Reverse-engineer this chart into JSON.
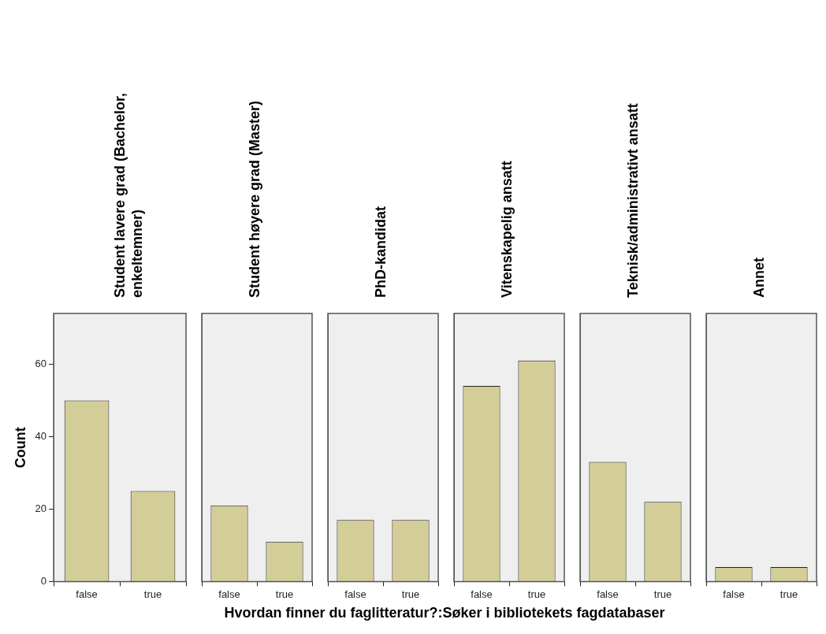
{
  "chart_data": [
    {
      "type": "bar",
      "title": "Student lavere grad (Bachelor, enkeltemner)",
      "ylabel": "Count",
      "xlabel": "Hvordan finner du faglitteratur?:Søker i bibliotekets fagdatabaser",
      "categories": [
        "false",
        "true"
      ],
      "values": [
        50,
        25
      ],
      "color": "#d3ce97",
      "ylim": [
        0,
        74
      ],
      "yticks": [
        0,
        20,
        40,
        60
      ],
      "grid": false
    },
    {
      "type": "bar",
      "title": "Student høyere grad (Master)",
      "categories": [
        "false",
        "true"
      ],
      "values": [
        21,
        11
      ],
      "color": "#d3ce97",
      "ylim": [
        0,
        74
      ],
      "tick_labels": "x",
      "grid": false
    },
    {
      "type": "bar",
      "title": "PhD-kandidat",
      "categories": [
        "false",
        "true"
      ],
      "values": [
        17,
        17
      ],
      "color": "#d3ce97",
      "ylim": [
        0,
        74
      ],
      "tick_labels": "x",
      "grid": false
    },
    {
      "type": "bar",
      "title": "Vitenskapelig ansatt",
      "categories": [
        "false",
        "true"
      ],
      "values": [
        54,
        61
      ],
      "color": "#d3ce97",
      "ylim": [
        0,
        74
      ],
      "tick_labels": "x",
      "grid": false
    },
    {
      "type": "bar",
      "title": "Teknisk/administrativt ansatt",
      "categories": [
        "false",
        "true"
      ],
      "values": [
        33,
        22
      ],
      "color": "#d3ce97",
      "ylim": [
        0,
        74
      ],
      "tick_labels": "x",
      "grid": false
    },
    {
      "type": "bar",
      "title": "Annet",
      "categories": [
        "false",
        "true"
      ],
      "values": [
        4,
        4
      ],
      "color": "#d3ce97",
      "ylim": [
        0,
        74
      ],
      "tick_labels": "x",
      "grid": false
    }
  ]
}
